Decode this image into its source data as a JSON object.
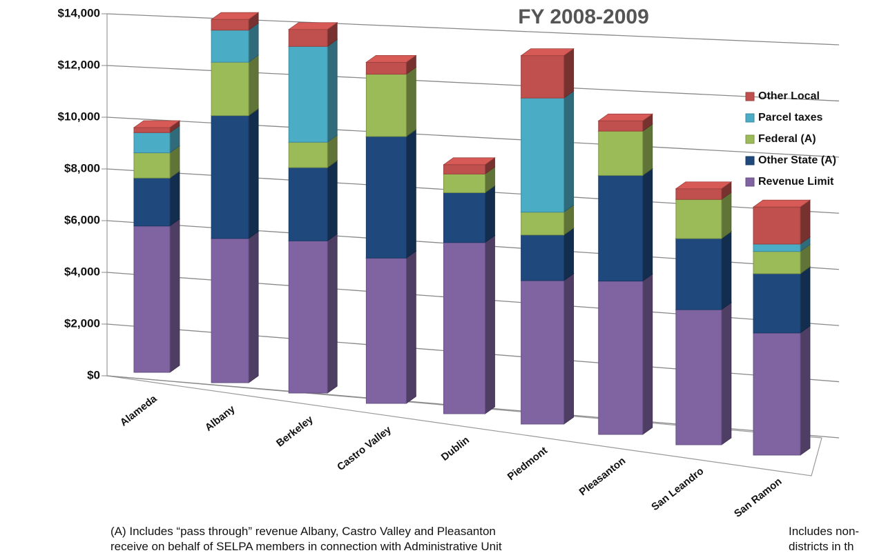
{
  "chart_data": {
    "type": "bar3d_stacked",
    "title": "FY 2008-2009",
    "categories": [
      "Alameda",
      "Albany",
      "Berkeley",
      "Castro Valley",
      "Dublin",
      "Piedmont",
      "Pleasanton",
      "San Leandro",
      "San Ramon"
    ],
    "series": [
      {
        "name": "Revenue Limit",
        "color": "#8064a2",
        "values": [
          5800,
          5400,
          5400,
          4900,
          5500,
          4400,
          4500,
          3800,
          3300
        ]
      },
      {
        "name": "Other State (A)",
        "color": "#1f497d",
        "values": [
          1900,
          4600,
          2600,
          4100,
          1600,
          1400,
          3100,
          2000,
          1600
        ]
      },
      {
        "name": "Federal (A)",
        "color": "#9bbb59",
        "values": [
          1000,
          2000,
          900,
          2100,
          600,
          700,
          1300,
          1100,
          600
        ]
      },
      {
        "name": "Parcel taxes",
        "color": "#4bacc6",
        "values": [
          800,
          1200,
          3400,
          0,
          0,
          3500,
          0,
          0,
          200
        ]
      },
      {
        "name": "Other Local",
        "color": "#c0504d",
        "values": [
          200,
          400,
          600,
          400,
          300,
          1300,
          300,
          300,
          1000
        ]
      }
    ],
    "ylim": [
      0,
      14000
    ],
    "yticks": [
      {
        "value": 0,
        "label": "$0"
      },
      {
        "value": 2000,
        "label": "$2,000"
      },
      {
        "value": 4000,
        "label": "$4,000"
      },
      {
        "value": 6000,
        "label": "$6,000"
      },
      {
        "value": 8000,
        "label": "$8,000"
      },
      {
        "value": 10000,
        "label": "$10,000"
      },
      {
        "value": 12000,
        "label": "$12,000"
      },
      {
        "value": 14000,
        "label": "$14,000"
      }
    ],
    "grid": true,
    "legend": "right",
    "notes": [
      "(A) Includes “pass through” revenue Albany, Castro Valley and Pleasanton",
      "receive on behalf of SELPA members in connection with Administrative Unit",
      "Includes non-",
      "districts in th"
    ]
  }
}
